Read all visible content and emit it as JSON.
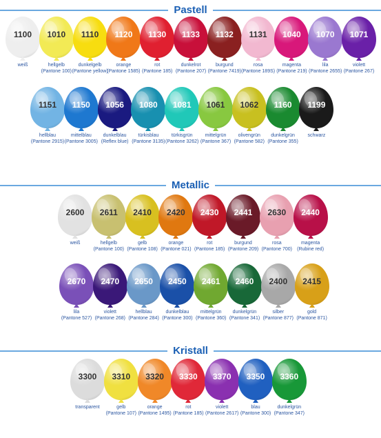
{
  "theme": {
    "accent": "#1a5fb4",
    "label_color": "#2a55a0",
    "line_color": "#6aa8e0"
  },
  "sections": [
    {
      "title": "Pastell",
      "rows": [
        [
          {
            "code": "1100",
            "name": "weiß",
            "pantone": "",
            "color": "#eeeeee",
            "text": "#333333"
          },
          {
            "code": "1010",
            "name": "hellgelb",
            "pantone": "(Pantone 100)",
            "color": "#f2ea55",
            "text": "#333333"
          },
          {
            "code": "1110",
            "name": "dunkelgelb",
            "pantone": "(Pantone yellow)",
            "color": "#f7dd10",
            "text": "#333333"
          },
          {
            "code": "1120",
            "name": "orange",
            "pantone": "(Pantone 1585)",
            "color": "#f07818",
            "text": "#ffffff"
          },
          {
            "code": "1130",
            "name": "rot",
            "pantone": "(Pantone 185)",
            "color": "#e02030",
            "text": "#ffffff"
          },
          {
            "code": "1133",
            "name": "dunkelrot",
            "pantone": "(Pantone 207)",
            "color": "#c8103a",
            "text": "#ffffff"
          },
          {
            "code": "1132",
            "name": "burgund",
            "pantone": "(Pantone 7419)",
            "color": "#8a2020",
            "text": "#ffffff"
          },
          {
            "code": "1131",
            "name": "rosa",
            "pantone": "(Pantone 189S)",
            "color": "#f2b8d0",
            "text": "#333333"
          },
          {
            "code": "1040",
            "name": "magenta",
            "pantone": "(Pantone 219)",
            "color": "#d8187a",
            "text": "#ffffff"
          },
          {
            "code": "1070",
            "name": "lila",
            "pantone": "(Pantone 2655)",
            "color": "#9a78d0",
            "text": "#ffffff"
          },
          {
            "code": "1071",
            "name": "violett",
            "pantone": "(Pantone 267)",
            "color": "#6a20a8",
            "text": "#ffffff"
          }
        ],
        [
          {
            "code": "1151",
            "name": "hellblau",
            "pantone": "(Pantone 2915)",
            "color": "#72b4e4",
            "text": "#333333"
          },
          {
            "code": "1150",
            "name": "mittelblau",
            "pantone": "(Pantone 3005)",
            "color": "#1e78d0",
            "text": "#ffffff"
          },
          {
            "code": "1056",
            "name": "dunkelblau",
            "pantone": "(Reflex blue)",
            "color": "#1a1a80",
            "text": "#ffffff"
          },
          {
            "code": "1080",
            "name": "türkisblau",
            "pantone": "(Pantone 3135)",
            "color": "#1890b0",
            "text": "#ffffff"
          },
          {
            "code": "1081",
            "name": "türkisgrün",
            "pantone": "(Pantone 3262)",
            "color": "#20c8b8",
            "text": "#ffffff"
          },
          {
            "code": "1061",
            "name": "mittelgrün",
            "pantone": "(Pantone 367)",
            "color": "#88c840",
            "text": "#333333"
          },
          {
            "code": "1062",
            "name": "olivengrün",
            "pantone": "(Pantone 582)",
            "color": "#c8c020",
            "text": "#333333"
          },
          {
            "code": "1160",
            "name": "dunkelgrün",
            "pantone": "(Pantone 355)",
            "color": "#1a8a30",
            "text": "#ffffff"
          },
          {
            "code": "1199",
            "name": "schwarz",
            "pantone": "",
            "color": "#1a1a1a",
            "text": "#ffffff"
          }
        ]
      ]
    },
    {
      "title": "Metallic",
      "rows": [
        [
          {
            "code": "2600",
            "name": "weiß",
            "pantone": "",
            "color": "#e2e2e2",
            "text": "#333333"
          },
          {
            "code": "2611",
            "name": "hellgelb",
            "pantone": "(Pantone 100)",
            "color": "#c8c070",
            "text": "#333333"
          },
          {
            "code": "2410",
            "name": "gelb",
            "pantone": "(Pantone 108)",
            "color": "#d8c020",
            "text": "#333333"
          },
          {
            "code": "2420",
            "name": "orange",
            "pantone": "(Pantone 021)",
            "color": "#e07810",
            "text": "#333333"
          },
          {
            "code": "2430",
            "name": "rot",
            "pantone": "(Pantone 185)",
            "color": "#c01828",
            "text": "#ffffff"
          },
          {
            "code": "2441",
            "name": "burgund",
            "pantone": "(Pantone 209)",
            "color": "#6a1a28",
            "text": "#ffffff"
          },
          {
            "code": "2630",
            "name": "rosa",
            "pantone": "(Pantone 700)",
            "color": "#e8a0b0",
            "text": "#333333"
          },
          {
            "code": "2440",
            "name": "magenta",
            "pantone": "(Rubine red)",
            "color": "#b81048",
            "text": "#ffffff"
          }
        ],
        [
          {
            "code": "2670",
            "name": "lila",
            "pantone": "(Pantone 527)",
            "color": "#7a50b8",
            "text": "#ffffff"
          },
          {
            "code": "2470",
            "name": "violett",
            "pantone": "(Pantone 268)",
            "color": "#3a1878",
            "text": "#ffffff"
          },
          {
            "code": "2650",
            "name": "hellblau",
            "pantone": "(Pantone 284)",
            "color": "#6a98c8",
            "text": "#ffffff"
          },
          {
            "code": "2450",
            "name": "dunkelblau",
            "pantone": "(Pantone 300)",
            "color": "#1a50a8",
            "text": "#ffffff"
          },
          {
            "code": "2461",
            "name": "mittelgrün",
            "pantone": "(Pantone 360)",
            "color": "#70a830",
            "text": "#ffffff"
          },
          {
            "code": "2460",
            "name": "dunkelgrün",
            "pantone": "(Pantone 341)",
            "color": "#186838",
            "text": "#ffffff"
          },
          {
            "code": "2400",
            "name": "silber",
            "pantone": "(Pantone 877)",
            "color": "#a8a8a8",
            "text": "#333333"
          },
          {
            "code": "2415",
            "name": "gold",
            "pantone": "(Pantone 871)",
            "color": "#d8a018",
            "text": "#333333"
          }
        ]
      ]
    },
    {
      "title": "Kristall",
      "rows": [
        [
          {
            "code": "3300",
            "name": "transparent",
            "pantone": "",
            "color": "#dcdcdc",
            "text": "#333333"
          },
          {
            "code": "3310",
            "name": "gelb",
            "pantone": "(Pantone 107)",
            "color": "#f0e040",
            "text": "#333333"
          },
          {
            "code": "3320",
            "name": "orange",
            "pantone": "(Pantone 1495)",
            "color": "#f08828",
            "text": "#333333"
          },
          {
            "code": "3330",
            "name": "rot",
            "pantone": "(Pantone 185)",
            "color": "#e02838",
            "text": "#ffffff"
          },
          {
            "code": "3370",
            "name": "violett",
            "pantone": "(Pantone 2617)",
            "color": "#8a30b0",
            "text": "#ffffff"
          },
          {
            "code": "3350",
            "name": "blau",
            "pantone": "(Pantone 300)",
            "color": "#2060c0",
            "text": "#ffffff"
          },
          {
            "code": "3360",
            "name": "dunkelgrün",
            "pantone": "(Pantone 347)",
            "color": "#189838",
            "text": "#ffffff"
          }
        ]
      ]
    }
  ]
}
